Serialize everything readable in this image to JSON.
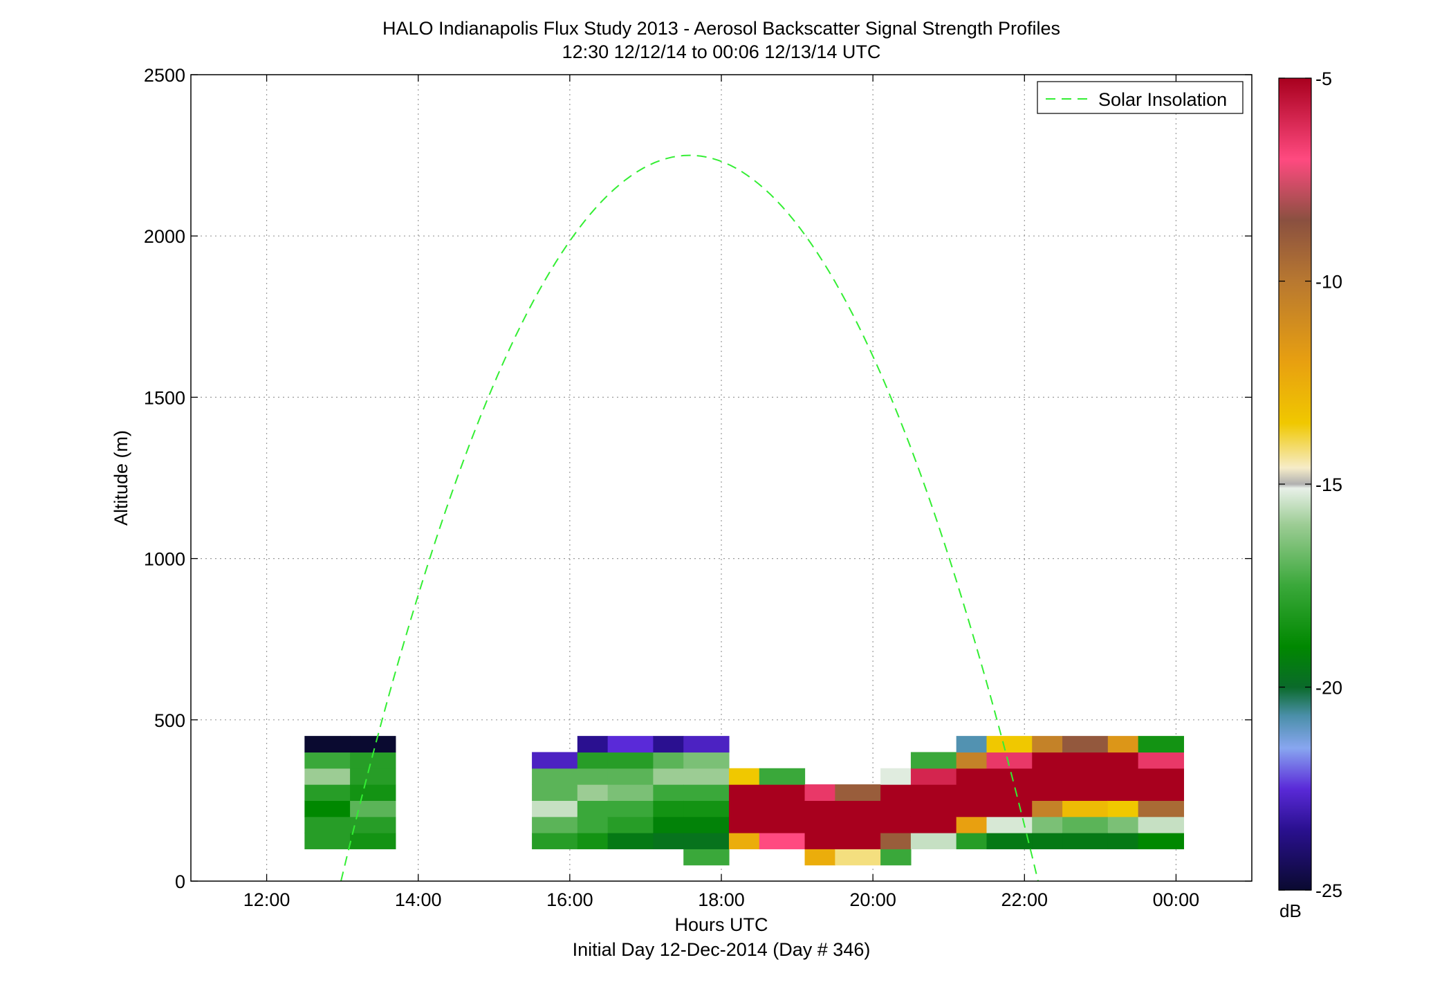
{
  "chart_data": {
    "type": "heatmap",
    "title": "HALO Indianapolis Flux Study 2013 - Aerosol Backscatter Signal Strength Profiles",
    "subtitle": "12:30 12/12/14 to 00:06 12/13/14  UTC",
    "xlabel": "Hours UTC",
    "xlabel2": "Initial Day 12-Dec-2014 (Day # 346)",
    "ylabel": "Altitude (m)",
    "xlim": [
      11,
      25
    ],
    "ylim": [
      0,
      2500
    ],
    "x_ticks": [
      12,
      14,
      16,
      18,
      20,
      22,
      24
    ],
    "x_tick_labels": [
      "12:00",
      "14:00",
      "16:00",
      "18:00",
      "20:00",
      "22:00",
      "00:00"
    ],
    "y_ticks": [
      0,
      500,
      1000,
      1500,
      2000,
      2500
    ],
    "y_tick_labels": [
      "0",
      "500",
      "1000",
      "1500",
      "2000",
      "2500"
    ],
    "grid": true,
    "legend": {
      "position": "top-right",
      "entries": [
        "Solar Insolation"
      ]
    },
    "colorbar": {
      "range": [
        -25,
        -5
      ],
      "ticks": [
        -25,
        -20,
        -15,
        -10,
        -5
      ],
      "tick_labels": [
        "-25",
        "-20",
        "-15",
        "-10",
        "-5"
      ],
      "unit": "dB",
      "stops": [
        {
          "v": -25,
          "c": "#0a0a30"
        },
        {
          "v": -23.5,
          "c": "#2a1090"
        },
        {
          "v": -22.5,
          "c": "#5a2ad8"
        },
        {
          "v": -21.5,
          "c": "#88a6f0"
        },
        {
          "v": -20.7,
          "c": "#4a8fa8"
        },
        {
          "v": -20,
          "c": "#0a6a2a"
        },
        {
          "v": -19,
          "c": "#008800"
        },
        {
          "v": -17.5,
          "c": "#3aa83a"
        },
        {
          "v": -16,
          "c": "#9ccc94"
        },
        {
          "v": -15.1,
          "c": "#e8f0e8"
        },
        {
          "v": -15,
          "c": "#b0b0b0"
        },
        {
          "v": -14.6,
          "c": "#f6ecc8"
        },
        {
          "v": -13.5,
          "c": "#f0c800"
        },
        {
          "v": -12,
          "c": "#e8a010"
        },
        {
          "v": -10,
          "c": "#b87830"
        },
        {
          "v": -8.5,
          "c": "#8a5040"
        },
        {
          "v": -7,
          "c": "#ff4a80"
        },
        {
          "v": -5,
          "c": "#a8001e"
        }
      ]
    },
    "time_bins": [
      12.5,
      12.7,
      12.9,
      13.1,
      13.3,
      13.5,
      13.7,
      13.9,
      14.1,
      14.3,
      14.5,
      14.7,
      14.9,
      15.1,
      15.3,
      15.5,
      15.7,
      15.9,
      16.1,
      16.3,
      16.5,
      16.7,
      16.9,
      17.1,
      17.3,
      17.5,
      17.7,
      17.9,
      18.1,
      18.3,
      18.5,
      18.7,
      18.9,
      19.1,
      19.3,
      19.5,
      19.7,
      19.9,
      20.1,
      20.3,
      20.5,
      20.7,
      20.9,
      21.1,
      21.3,
      21.5,
      21.7,
      21.9,
      22.1,
      22.3,
      22.5,
      22.7,
      22.9,
      23.1,
      23.3,
      23.5,
      23.7,
      23.9,
      24.1
    ],
    "cell_height_m": 50,
    "cells": [
      {
        "t": 12.5,
        "h": [
          null,
          null,
          -18,
          -18,
          -19,
          -18,
          -16,
          -17.5,
          -25
        ]
      },
      {
        "t": 13.1,
        "h": [
          null,
          null,
          -18.5,
          -18,
          -17,
          -18.5,
          -18,
          -18,
          -25
        ]
      },
      {
        "t": 15.5,
        "h": [
          null,
          null,
          -18,
          -17,
          -15.5,
          -17,
          -17,
          -22.8,
          null
        ]
      },
      {
        "t": 16.1,
        "h": [
          null,
          null,
          -18.5,
          -17.5,
          -17.5,
          -16,
          -17,
          -18,
          -23.5
        ]
      },
      {
        "t": 16.5,
        "h": [
          null,
          null,
          -19.5,
          -18,
          -17.5,
          -16.5,
          -17,
          -18,
          -22.5
        ]
      },
      {
        "t": 17.1,
        "h": [
          null,
          null,
          -19.7,
          -19.2,
          -18.5,
          -17.5,
          -16,
          -17,
          -23.5
        ]
      },
      {
        "t": 17.5,
        "h": [
          null,
          -17.5,
          -19.7,
          -19.2,
          -18.5,
          -17.5,
          -16,
          -16.5,
          -22.8
        ]
      },
      {
        "t": 18.1,
        "h": [
          null,
          null,
          -12.5,
          -5,
          -5,
          -5,
          -13.5,
          null,
          null
        ]
      },
      {
        "t": 18.5,
        "h": [
          null,
          null,
          -7,
          -5,
          -5,
          -5,
          -17.5,
          null,
          null
        ]
      },
      {
        "t": 19.1,
        "h": [
          null,
          -12.5,
          -5,
          -5,
          -5,
          -6.5,
          null,
          null,
          null
        ]
      },
      {
        "t": 19.5,
        "h": [
          null,
          -14.2,
          -5,
          -5,
          -5,
          -9,
          null,
          null,
          null
        ]
      },
      {
        "t": 20.1,
        "h": [
          null,
          -17.5,
          -9,
          -5,
          -5,
          -5,
          -15.2,
          null,
          null
        ]
      },
      {
        "t": 20.5,
        "h": [
          null,
          null,
          -15.5,
          -5,
          -5,
          -5,
          -6,
          -17.5,
          null
        ]
      },
      {
        "t": 21.1,
        "h": [
          null,
          null,
          -18,
          -12,
          -5,
          -5,
          -5,
          -10.5,
          -20.8
        ]
      },
      {
        "t": 21.5,
        "h": [
          null,
          null,
          -19.5,
          -15.3,
          -5,
          -5,
          -5,
          -6.5,
          -13.5
        ]
      },
      {
        "t": 22.1,
        "h": [
          null,
          null,
          -19.5,
          -16.5,
          -10.5,
          -5,
          -5,
          -5,
          -10.5
        ]
      },
      {
        "t": 22.5,
        "h": [
          null,
          null,
          -19.5,
          -17,
          -13,
          -5,
          -5,
          -5,
          -8.8
        ]
      },
      {
        "t": 23.1,
        "h": [
          null,
          null,
          -19.5,
          -16.5,
          -13.5,
          -5,
          -5,
          -5,
          -11.5
        ]
      },
      {
        "t": 23.5,
        "h": [
          null,
          null,
          -19,
          -15.5,
          -9.5,
          -5,
          -5,
          -6.5,
          -18.5
        ]
      }
    ],
    "solar_insolation": {
      "name": "Solar Insolation",
      "start_hour": 12.98,
      "end_hour": 22.18,
      "peak_hour": 17.58,
      "peak_altitude": 2250
    }
  }
}
